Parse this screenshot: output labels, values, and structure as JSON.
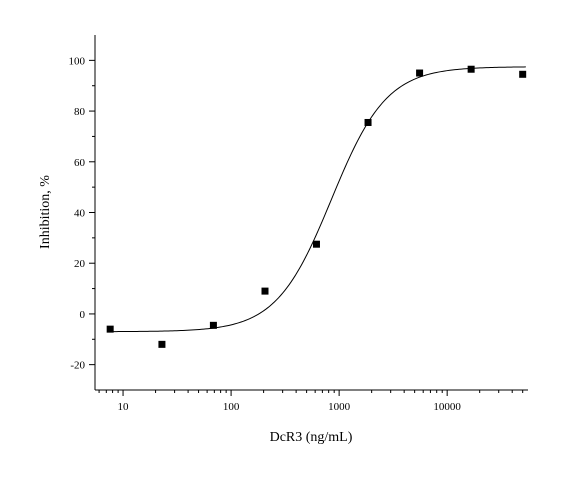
{
  "chart_data": {
    "type": "scatter",
    "xlabel": "DcR3 (ng/mL)",
    "ylabel": "Inhibition, %",
    "x_scale": "log",
    "xlim": [
      5.5,
      56000
    ],
    "ylim": [
      -30,
      110
    ],
    "x_ticks": [
      10,
      100,
      1000,
      10000
    ],
    "x_tick_labels": [
      "10",
      "100",
      "1000",
      "10000"
    ],
    "y_ticks": [
      -20,
      0,
      20,
      40,
      60,
      80,
      100
    ],
    "y_tick_labels": [
      "-20",
      "0",
      "20",
      "40",
      "60",
      "80",
      "100"
    ],
    "series": [
      {
        "marker": "square",
        "x": [
          7.6,
          22.9,
          68.6,
          206,
          617,
          1852,
          5556,
          16667,
          50000
        ],
        "y": [
          -6,
          -12,
          -4.5,
          9,
          27.5,
          75.5,
          95,
          96.5,
          94.5
        ]
      }
    ],
    "fit_curve": {
      "type": "sigmoid",
      "bottom": -7,
      "top": 97.5,
      "ec50": 850,
      "hill": 1.7
    },
    "grid": false,
    "legend": "none",
    "colors": {
      "marks": "#000000",
      "background": "#ffffff"
    }
  }
}
